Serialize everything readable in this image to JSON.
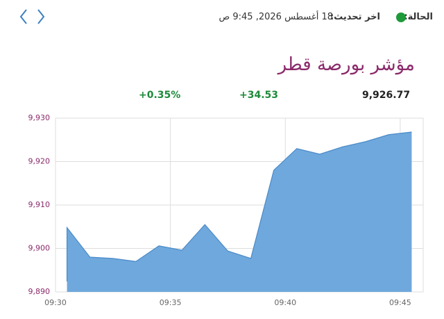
{
  "header": {
    "status_label": "الحالة:",
    "updated_label": "اخر تحديث:",
    "updated_time": "18 أغسطس 2026, 9:45 ص"
  },
  "title": "مؤشر بورصة قطر",
  "stats": {
    "last": "9,926.77",
    "change": "+34.53",
    "change_percent": "+0.35%"
  },
  "chart_data": {
    "type": "area",
    "x": [
      570.5,
      570.5,
      571.5,
      572.5,
      573.5,
      574.5,
      575.5,
      576.5,
      577.5,
      578.5,
      579.5,
      580.5,
      581.5,
      582.5,
      583.5,
      584.5,
      585.5
    ],
    "values": [
      9892.4,
      9904.8,
      9898.0,
      9897.7,
      9897.0,
      9900.6,
      9899.6,
      9905.5,
      9899.4,
      9897.7,
      9918.0,
      9923.0,
      9921.7,
      9923.4,
      9924.6,
      9926.2,
      9926.8
    ],
    "color": "#6fa8dc",
    "line_color": "#4a8ac8",
    "xlim": [
      570,
      586
    ],
    "ylim": [
      9890,
      9930
    ],
    "xticks": [
      {
        "value": 570,
        "label": "09:30"
      },
      {
        "value": 575,
        "label": "09:35"
      },
      {
        "value": 580,
        "label": "09:40"
      },
      {
        "value": 585,
        "label": "09:45"
      }
    ],
    "yticks": [
      {
        "value": 9890,
        "label": "9,890"
      },
      {
        "value": 9900,
        "label": "9,900"
      },
      {
        "value": 9910,
        "label": "9,910"
      },
      {
        "value": 9920,
        "label": "9,920"
      },
      {
        "value": 9930,
        "label": "9,930"
      }
    ],
    "grid": true
  }
}
